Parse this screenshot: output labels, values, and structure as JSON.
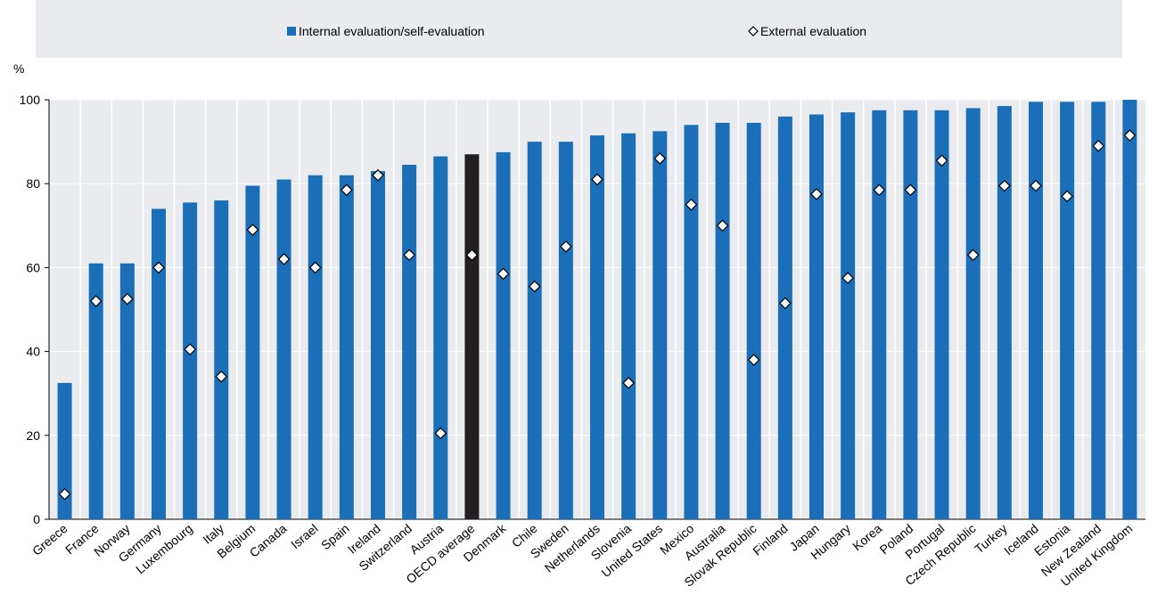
{
  "chart_data": {
    "type": "bar",
    "y_label": "%",
    "categories": [
      "Greece",
      "France",
      "Norway",
      "Germany",
      "Luxembourg",
      "Italy",
      "Belgium",
      "Canada",
      "Israel",
      "Spain",
      "Ireland",
      "Switzerland",
      "Austria",
      "OECD average",
      "Denmark",
      "Chile",
      "Sweden",
      "Netherlands",
      "Slovenia",
      "United States",
      "Mexico",
      "Australia",
      "Slovak Republic",
      "Finland",
      "Japan",
      "Hungary",
      "Korea",
      "Poland",
      "Portugal",
      "Czech Republic",
      "Turkey",
      "Iceland",
      "Estonia",
      "New Zealand",
      "United Kingdom"
    ],
    "series": [
      {
        "name": "Internal evaluation/self-evaluation",
        "type": "bar",
        "color": "#1a6fb8",
        "colors": [
          "#1a6fb8",
          "#1a6fb8",
          "#1a6fb8",
          "#1a6fb8",
          "#1a6fb8",
          "#1a6fb8",
          "#1a6fb8",
          "#1a6fb8",
          "#1a6fb8",
          "#1a6fb8",
          "#1a6fb8",
          "#1a6fb8",
          "#1a6fb8",
          "#231f20",
          "#1a6fb8",
          "#1a6fb8",
          "#1a6fb8",
          "#1a6fb8",
          "#1a6fb8",
          "#1a6fb8",
          "#1a6fb8",
          "#1a6fb8",
          "#1a6fb8",
          "#1a6fb8",
          "#1a6fb8",
          "#1a6fb8",
          "#1a6fb8",
          "#1a6fb8",
          "#1a6fb8",
          "#1a6fb8",
          "#1a6fb8",
          "#1a6fb8",
          "#1a6fb8",
          "#1a6fb8",
          "#1a6fb8"
        ],
        "values": [
          32.5,
          61,
          61,
          74,
          75.5,
          76,
          79.5,
          81,
          82,
          82,
          83,
          84.5,
          86.5,
          87,
          87.5,
          90,
          90,
          91.5,
          92,
          92.5,
          94,
          94.5,
          94.5,
          96,
          96.5,
          97,
          97.5,
          97.5,
          97.5,
          98,
          98.5,
          99.5,
          99.5,
          99.5,
          100
        ]
      },
      {
        "name": "External evaluation",
        "type": "scatter",
        "marker": "diamond",
        "color": "#ffffff",
        "values": [
          6,
          52,
          52.5,
          60,
          40.5,
          34,
          69,
          62,
          60,
          78.5,
          82,
          63,
          20.5,
          63,
          58.5,
          55.5,
          65,
          81,
          32.5,
          86,
          75,
          70,
          38,
          51.5,
          77.5,
          57.5,
          78.5,
          78.5,
          85.5,
          63,
          79.5,
          79.5,
          77,
          89,
          91.5
        ]
      }
    ],
    "ylim": [
      0,
      100
    ],
    "yticks": [
      0,
      20,
      40,
      60,
      80,
      100
    ],
    "grid": true
  }
}
